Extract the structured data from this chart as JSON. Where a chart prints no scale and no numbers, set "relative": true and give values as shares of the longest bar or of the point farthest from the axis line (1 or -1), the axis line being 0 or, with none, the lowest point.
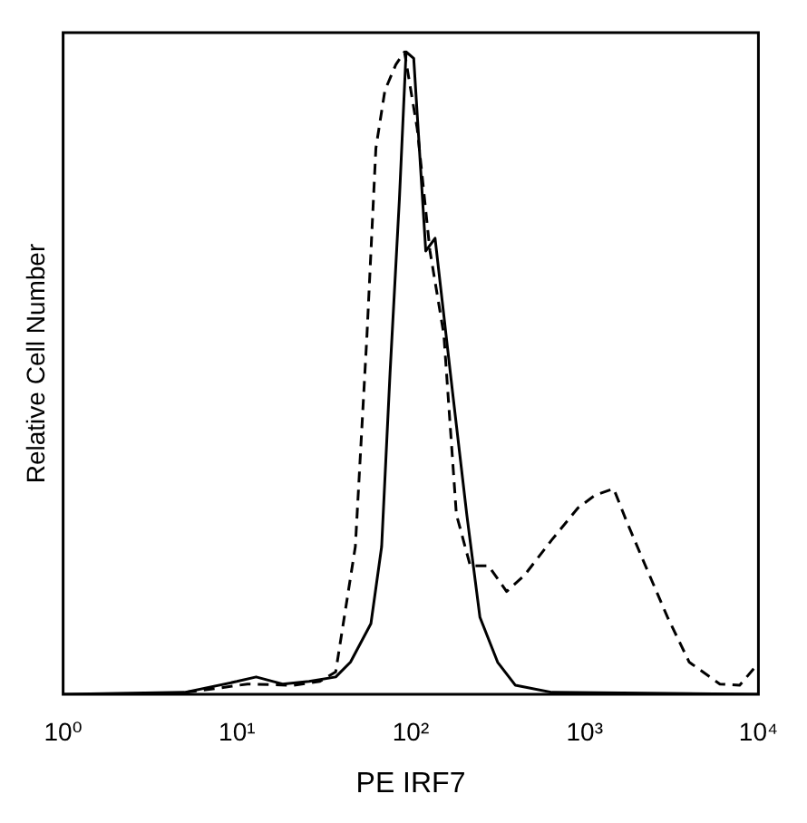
{
  "chart_data": {
    "type": "line",
    "xlabel": "PE IRF7",
    "ylabel": "Relative Cell Number",
    "relative": true,
    "log": "x",
    "xlim": [
      1,
      10000
    ],
    "xticks": [
      {
        "value": 1,
        "label": "10⁰"
      },
      {
        "value": 10,
        "label": "10¹"
      },
      {
        "value": 100,
        "label": "10²"
      },
      {
        "value": 1000,
        "label": "10³"
      },
      {
        "value": 10000,
        "label": "10⁴"
      }
    ],
    "grid": false,
    "legend": false,
    "series": [
      {
        "color": "#000000",
        "line_style": "solid",
        "x": [
          1,
          5,
          10,
          12.9,
          18.3,
          26,
          37,
          45,
          59,
          68,
          76,
          86,
          94,
          104,
          122,
          138,
          174,
          210,
          250,
          316,
          400,
          650,
          10000
        ],
        "values": [
          0,
          0.003,
          0.02,
          0.027,
          0.016,
          0.02,
          0.027,
          0.05,
          0.11,
          0.23,
          0.5,
          0.77,
          1,
          0.99,
          0.69,
          0.71,
          0.47,
          0.28,
          0.12,
          0.05,
          0.014,
          0.003,
          0
        ]
      },
      {
        "color": "#000000",
        "line_style": "dashed",
        "x": [
          4,
          7.1,
          11.5,
          21,
          30,
          37,
          48,
          56,
          63,
          71,
          82,
          92,
          109,
          129,
          155,
          183,
          220,
          280,
          356,
          450,
          646,
          915,
          1150,
          1470,
          1740,
          2240,
          3000,
          4000,
          6000,
          7800,
          9400
        ],
        "values": [
          0,
          0.008,
          0.016,
          0.014,
          0.02,
          0.035,
          0.23,
          0.56,
          0.85,
          0.94,
          0.98,
          1,
          0.88,
          0.69,
          0.56,
          0.28,
          0.2,
          0.2,
          0.16,
          0.185,
          0.24,
          0.29,
          0.31,
          0.32,
          0.27,
          0.2,
          0.12,
          0.05,
          0.016,
          0.014,
          0.04
        ]
      }
    ]
  }
}
